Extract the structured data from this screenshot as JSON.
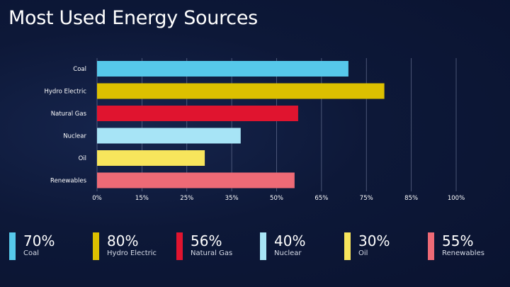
{
  "page": {
    "title": "Most Used Energy Sources"
  },
  "chart_data": {
    "type": "bar",
    "orientation": "horizontal",
    "title": "Most Used Energy Sources",
    "xlabel": "",
    "ylabel": "",
    "categories": [
      "Coal",
      "Hydro Electric",
      "Natural Gas",
      "Nuclear",
      "Oil",
      "Renewables"
    ],
    "values": [
      70,
      80,
      56,
      40,
      30,
      55
    ],
    "colors": [
      "#56c8ea",
      "#dcc000",
      "#e0142f",
      "#a7e4f6",
      "#f7e55c",
      "#ee6a76"
    ],
    "x_ticks": [
      "0%",
      "15%",
      "25%",
      "35%",
      "50%",
      "65%",
      "75%",
      "85%",
      "100%"
    ],
    "xlim": [
      0,
      100
    ],
    "grid": true,
    "legend": "bottom"
  },
  "legend": [
    {
      "value": "70%",
      "label": "Coal",
      "color": "#56c8ea"
    },
    {
      "value": "80%",
      "label": "Hydro Electric",
      "color": "#dcc000"
    },
    {
      "value": "56%",
      "label": "Natural Gas",
      "color": "#e0142f"
    },
    {
      "value": "40%",
      "label": "Nuclear",
      "color": "#a7e4f6"
    },
    {
      "value": "30%",
      "label": "Oil",
      "color": "#f7e55c"
    },
    {
      "value": "55%",
      "label": "Renewables",
      "color": "#ee6a76"
    }
  ]
}
